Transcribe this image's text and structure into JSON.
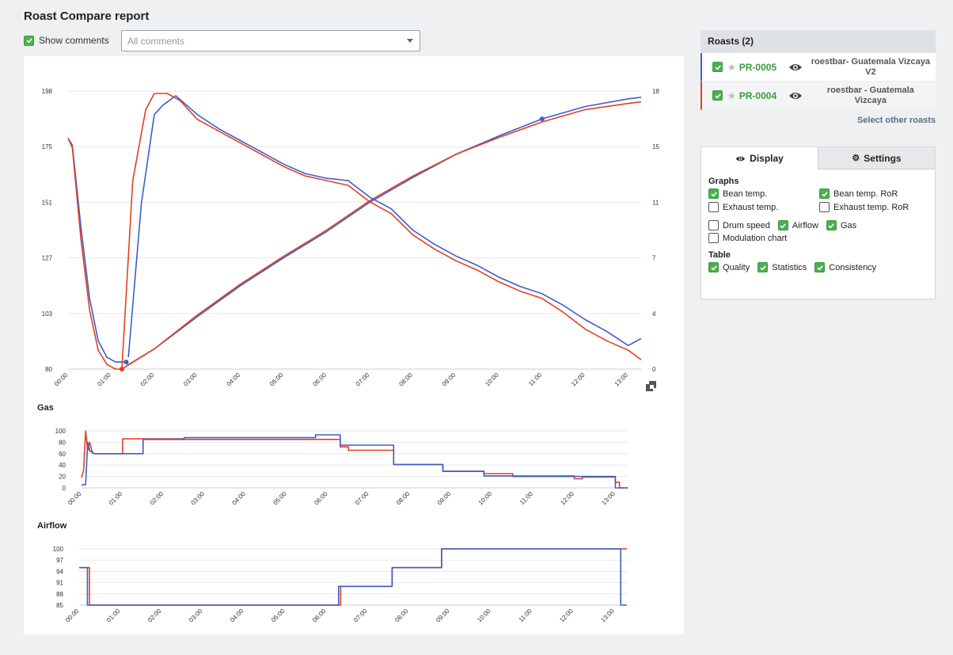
{
  "page": {
    "title": "Roast Compare report"
  },
  "comments": {
    "show_label": "Show comments",
    "show_checked": true,
    "select_value": "All comments"
  },
  "colors": {
    "roast_blue": "#3a5fcd",
    "roast_red": "#e2401f",
    "accent_green": "#4caf50"
  },
  "roasts": {
    "header": "Roasts (2)",
    "items": [
      {
        "code": "PR-0005",
        "name": "roestbar- Guatemala Vizcaya V2",
        "color": "#3a5fcd",
        "checked": true
      },
      {
        "code": "PR-0004",
        "name": "roestbar - Guatemala Vizcaya",
        "color": "#e2401f",
        "checked": true
      }
    ],
    "select_other": "Select other roasts"
  },
  "settings_panel": {
    "tabs": [
      {
        "label": "Display",
        "icon": "eye-icon",
        "active": true
      },
      {
        "label": "Settings",
        "icon": "gear-icon",
        "active": false
      }
    ],
    "graphs_heading": "Graphs",
    "graphs": [
      {
        "label": "Bean temp.",
        "checked": true
      },
      {
        "label": "Bean temp. RoR",
        "checked": true
      },
      {
        "label": "Exhaust temp.",
        "checked": false
      },
      {
        "label": "Exhaust temp. RoR",
        "checked": false
      }
    ],
    "extras": [
      {
        "label": "Drum speed",
        "checked": false
      },
      {
        "label": "Airflow",
        "checked": true
      },
      {
        "label": "Gas",
        "checked": true
      }
    ],
    "modulation": {
      "label": "Modulation chart",
      "checked": false
    },
    "table_heading": "Table",
    "table": [
      {
        "label": "Quality",
        "checked": true
      },
      {
        "label": "Statistics",
        "checked": true
      },
      {
        "label": "Consistency",
        "checked": true
      }
    ]
  },
  "chart_data": [
    {
      "type": "line",
      "title": "",
      "x_ticks": [
        "00:00",
        "01:00",
        "02:00",
        "03:00",
        "04:00",
        "05:00",
        "06:00",
        "07:00",
        "08:00",
        "09:00",
        "10:00",
        "11:00",
        "12:00",
        "13:00"
      ],
      "xlim": [
        0,
        13.3
      ],
      "y_left_ticks": [
        "80",
        "103",
        "127",
        "151",
        "175",
        "198"
      ],
      "ylim_left": [
        80,
        198
      ],
      "y_right_ticks": [
        "0",
        "4",
        "7",
        "11",
        "15",
        "18"
      ],
      "ylim_right": [
        0,
        18
      ],
      "series": [
        {
          "role": "bean_temp",
          "roast": "PR-0005",
          "color": "#3a5fcd",
          "axis": "left",
          "x": [
            0,
            0.1,
            0.3,
            0.5,
            0.7,
            0.9,
            1.1,
            1.35
          ],
          "y": [
            178,
            175,
            140,
            110,
            92,
            85,
            83,
            83
          ]
        },
        {
          "role": "bean_temp",
          "roast": "PR-0004",
          "color": "#e2401f",
          "axis": "left",
          "x": [
            0,
            0.1,
            0.3,
            0.5,
            0.7,
            0.9,
            1.1,
            1.25
          ],
          "y": [
            178,
            174,
            135,
            105,
            88,
            82,
            80,
            80
          ]
        },
        {
          "role": "bean_temp_rising",
          "roast": "PR-0005",
          "color": "#3a5fcd",
          "axis": "right",
          "x": [
            1.35,
            2.0,
            3.0,
            4.0,
            5.0,
            6.0,
            7.0,
            8.0,
            9.0,
            10.0,
            11.0,
            12.0,
            13.0,
            13.3
          ],
          "y": [
            0.2,
            1.3,
            3.4,
            5.4,
            7.2,
            8.9,
            10.8,
            12.4,
            13.9,
            15.1,
            16.2,
            17.0,
            17.5,
            17.6
          ]
        },
        {
          "role": "bean_temp_rising",
          "roast": "PR-0004",
          "color": "#e2401f",
          "axis": "right",
          "x": [
            1.25,
            2.0,
            3.0,
            4.0,
            5.0,
            6.0,
            7.0,
            8.0,
            9.0,
            10.0,
            11.0,
            12.0,
            13.0,
            13.3
          ],
          "y": [
            0.0,
            1.3,
            3.5,
            5.5,
            7.3,
            9.0,
            10.9,
            12.5,
            13.9,
            15.0,
            16.0,
            16.8,
            17.2,
            17.3
          ]
        },
        {
          "role": "ror",
          "roast": "PR-0005",
          "color": "#3a5fcd",
          "axis": "left",
          "x": [
            1.4,
            1.7,
            2.0,
            2.2,
            2.5,
            3.0,
            3.5,
            4.0,
            4.5,
            5.0,
            5.5,
            6.0,
            6.5,
            7.0,
            7.5,
            8.0,
            8.5,
            9.0,
            9.5,
            10.0,
            10.5,
            11.0,
            11.5,
            12.0,
            12.5,
            13.0,
            13.3
          ],
          "y": [
            85,
            150,
            188,
            192,
            196,
            188,
            182,
            177,
            172,
            167,
            163,
            161,
            160,
            153,
            148,
            139,
            133,
            128,
            124,
            119,
            115,
            112,
            107,
            101,
            96,
            90,
            93
          ]
        },
        {
          "role": "ror",
          "roast": "PR-0004",
          "color": "#e2401f",
          "axis": "left",
          "x": [
            1.25,
            1.5,
            1.8,
            2.0,
            2.3,
            2.6,
            3.0,
            3.5,
            4.0,
            4.5,
            5.0,
            5.5,
            6.0,
            6.5,
            7.0,
            7.5,
            8.0,
            8.5,
            9.0,
            9.5,
            10.0,
            10.5,
            11.0,
            11.5,
            12.0,
            12.5,
            13.0,
            13.3
          ],
          "y": [
            80,
            160,
            190,
            197,
            197,
            194,
            186,
            181,
            176,
            171,
            166,
            162,
            160,
            158,
            151,
            146,
            137,
            131,
            126,
            122,
            117,
            113,
            110,
            104,
            97,
            92,
            88,
            84
          ]
        }
      ],
      "markers": [
        {
          "x": 1.25,
          "y": 80,
          "color": "#e2401f"
        },
        {
          "x": 1.35,
          "y": 83,
          "color": "#3a5fcd"
        },
        {
          "x": 11.0,
          "y_right": 16.2,
          "color": "#3a5fcd"
        }
      ]
    },
    {
      "type": "line",
      "title": "Gas",
      "x_ticks": [
        "00:00",
        "01:00",
        "02:00",
        "03:00",
        "04:00",
        "05:00",
        "06:00",
        "07:00",
        "08:00",
        "09:00",
        "10:00",
        "11:00",
        "12:00",
        "13:00"
      ],
      "xlim": [
        0,
        13.3
      ],
      "y_ticks": [
        "0",
        "20",
        "40",
        "60",
        "80",
        "100"
      ],
      "ylim": [
        0,
        100
      ],
      "series": [
        {
          "roast": "PR-0004",
          "color": "#e2401f",
          "x": [
            0,
            0.05,
            0.1,
            0.15,
            0.2,
            0.25,
            0.3,
            1.0,
            1.0,
            2.5,
            2.5,
            6.3,
            6.3,
            6.5,
            6.5,
            7.6,
            7.6,
            8.8,
            8.8,
            9.8,
            9.8,
            10.5,
            10.5,
            12.0,
            12.0,
            12.2,
            12.2,
            13.0,
            13.0,
            13.1,
            13.1,
            13.3
          ],
          "y": [
            18,
            30,
            100,
            65,
            80,
            65,
            60,
            60,
            86,
            86,
            85,
            85,
            72,
            72,
            66,
            66,
            41,
            41,
            29,
            29,
            25,
            25,
            21,
            21,
            16,
            16,
            19,
            19,
            10,
            10,
            0,
            0
          ]
        },
        {
          "roast": "PR-0005",
          "color": "#3a5fcd",
          "x": [
            0,
            0.1,
            0.15,
            0.2,
            0.3,
            1.5,
            1.5,
            2.5,
            2.5,
            5.7,
            5.7,
            6.3,
            6.3,
            7.6,
            7.6,
            8.8,
            8.8,
            9.8,
            9.8,
            10.5,
            10.5,
            13.0,
            13.0,
            13.3
          ],
          "y": [
            5,
            6,
            80,
            65,
            60,
            60,
            85,
            85,
            88,
            88,
            93,
            93,
            75,
            75,
            41,
            41,
            29,
            29,
            21,
            21,
            20,
            20,
            0,
            0
          ]
        }
      ]
    },
    {
      "type": "line",
      "title": "Airflow",
      "x_ticks": [
        "00:00",
        "01:00",
        "02:00",
        "03:00",
        "04:00",
        "05:00",
        "06:00",
        "07:00",
        "08:00",
        "09:00",
        "10:00",
        "11:00",
        "12:00",
        "13:00"
      ],
      "xlim": [
        0,
        13.3
      ],
      "y_ticks": [
        "85",
        "88",
        "91",
        "94",
        "97",
        "100"
      ],
      "ylim": [
        85,
        100
      ],
      "series": [
        {
          "roast": "PR-0004",
          "color": "#e2401f",
          "x": [
            0,
            0.25,
            0.25,
            6.35,
            6.35,
            7.6,
            7.6,
            8.8,
            8.8,
            13.2,
            13.2,
            13.3
          ],
          "y": [
            95,
            95,
            85,
            85,
            90,
            90,
            95,
            95,
            100,
            100,
            100,
            100
          ]
        },
        {
          "roast": "PR-0005",
          "color": "#3a5fcd",
          "x": [
            0,
            0.2,
            0.2,
            6.3,
            6.3,
            7.6,
            7.6,
            8.8,
            8.8,
            13.15,
            13.15,
            13.3
          ],
          "y": [
            95,
            95,
            85,
            85,
            90,
            90,
            95,
            95,
            100,
            100,
            85,
            85
          ]
        }
      ]
    }
  ]
}
